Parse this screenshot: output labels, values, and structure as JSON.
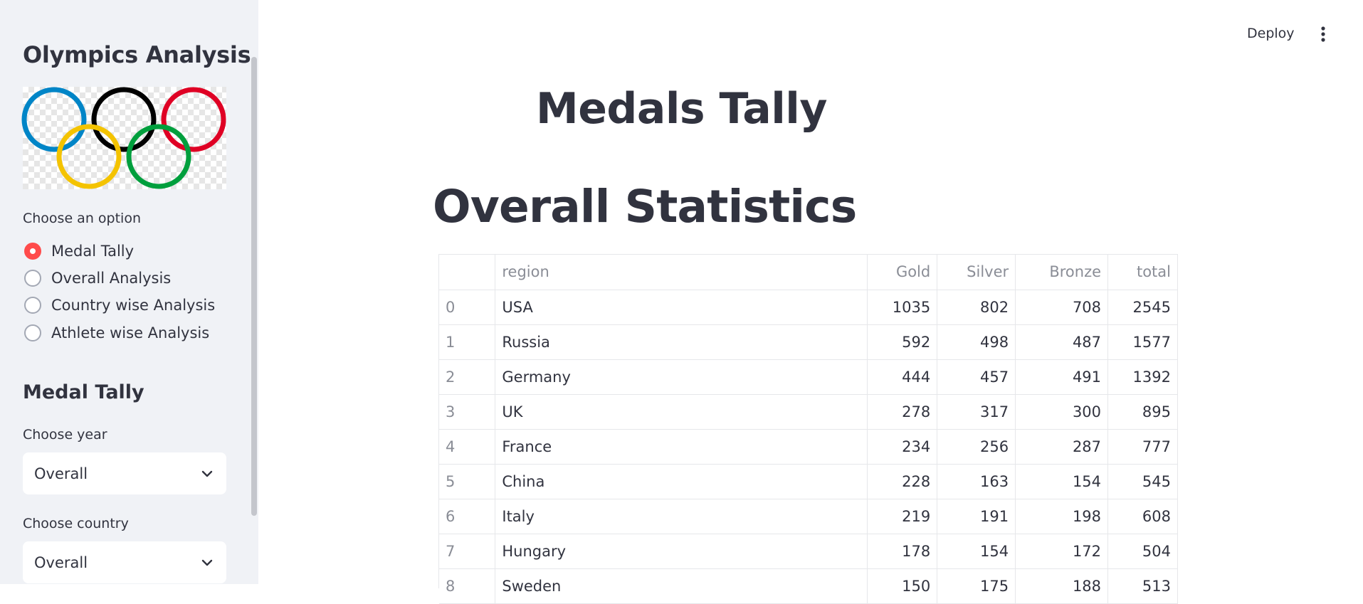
{
  "sidebar": {
    "title": "Olympics Analysis",
    "logo_icon": "olympic-rings",
    "option_label": "Choose an option",
    "options": [
      {
        "label": "Medal Tally",
        "selected": true
      },
      {
        "label": "Overall Analysis",
        "selected": false
      },
      {
        "label": "Country wise Analysis",
        "selected": false
      },
      {
        "label": "Athlete wise Analysis",
        "selected": false
      }
    ],
    "subheader": "Medal Tally",
    "year_label": "Choose year",
    "year_value": "Overall",
    "country_label": "Choose country",
    "country_value": "Overall"
  },
  "header": {
    "deploy_label": "Deploy",
    "menu_icon": "kebab-vertical-icon"
  },
  "main": {
    "title": "Medals Tally",
    "section_title": "Overall Statistics"
  },
  "table": {
    "columns": [
      "",
      "region",
      "Gold",
      "Silver",
      "Bronze",
      "total"
    ],
    "rows": [
      [
        "0",
        "USA",
        "1035",
        "802",
        "708",
        "2545"
      ],
      [
        "1",
        "Russia",
        "592",
        "498",
        "487",
        "1577"
      ],
      [
        "2",
        "Germany",
        "444",
        "457",
        "491",
        "1392"
      ],
      [
        "3",
        "UK",
        "278",
        "317",
        "300",
        "895"
      ],
      [
        "4",
        "France",
        "234",
        "256",
        "287",
        "777"
      ],
      [
        "5",
        "China",
        "228",
        "163",
        "154",
        "545"
      ],
      [
        "6",
        "Italy",
        "219",
        "191",
        "198",
        "608"
      ],
      [
        "7",
        "Hungary",
        "178",
        "154",
        "172",
        "504"
      ],
      [
        "8",
        "Sweden",
        "150",
        "175",
        "188",
        "513"
      ]
    ]
  },
  "colors": {
    "accent": "#ff4b4b",
    "sidebar_bg": "#f0f2f6",
    "text": "#31333f",
    "muted": "#8a8d96",
    "ring_blue": "#0085c7",
    "ring_yellow": "#f4c300",
    "ring_black": "#000000",
    "ring_green": "#009f3d",
    "ring_red": "#df0024"
  }
}
